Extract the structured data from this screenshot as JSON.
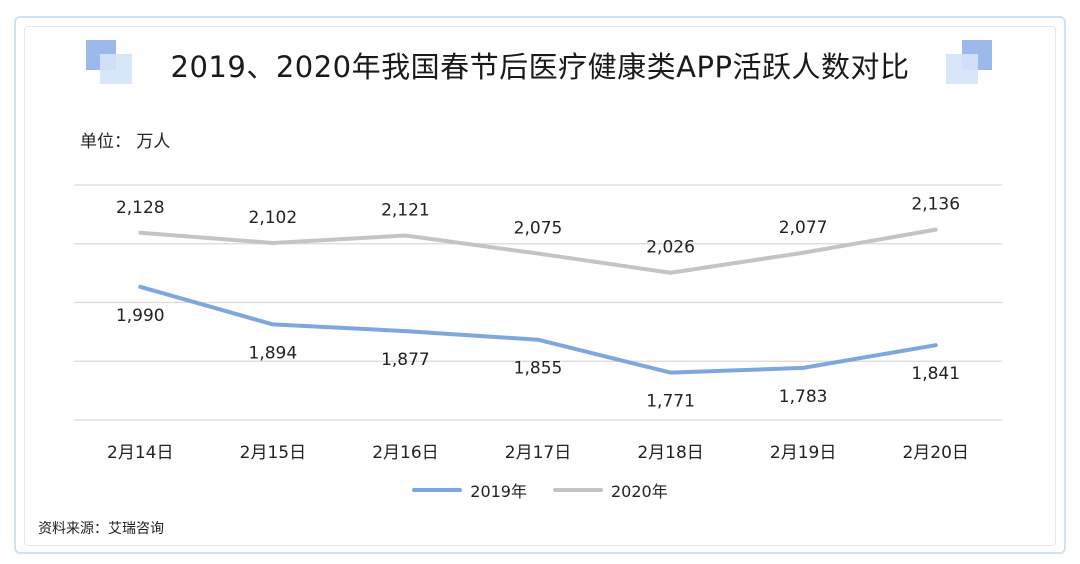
{
  "title": "2019、2020年我国春节后医疗健康类APP活跃人数对比",
  "unit_label": "单位：  万人",
  "source_label": "资料来源：艾瑞咨询",
  "colors": {
    "s2019": "#7ea7dc",
    "s2020": "#c4c4c4",
    "grid": "#d9d9d9",
    "deco_dark": "#8fb0e6",
    "deco_light": "#cfe0f7"
  },
  "chart_data": {
    "type": "line",
    "title": "2019、2020年我国春节后医疗健康类APP活跃人数对比",
    "ylabel": "万人",
    "categories": [
      "2月14日",
      "2月15日",
      "2月16日",
      "2月17日",
      "2月18日",
      "2月19日",
      "2月20日"
    ],
    "series": [
      {
        "name": "2019年",
        "values": [
          1990,
          1894,
          1877,
          1855,
          1771,
          1783,
          1841
        ],
        "labels": [
          "1,990",
          "1,894",
          "1,877",
          "1,855",
          "1,771",
          "1,783",
          "1,841"
        ]
      },
      {
        "name": "2020年",
        "values": [
          2128,
          2102,
          2121,
          2075,
          2026,
          2077,
          2136
        ],
        "labels": [
          "2,128",
          "2,102",
          "2,121",
          "2,075",
          "2,026",
          "2,077",
          "2,136"
        ]
      }
    ],
    "ylim": [
      1650,
      2250
    ],
    "grid": true,
    "legend_position": "bottom"
  }
}
